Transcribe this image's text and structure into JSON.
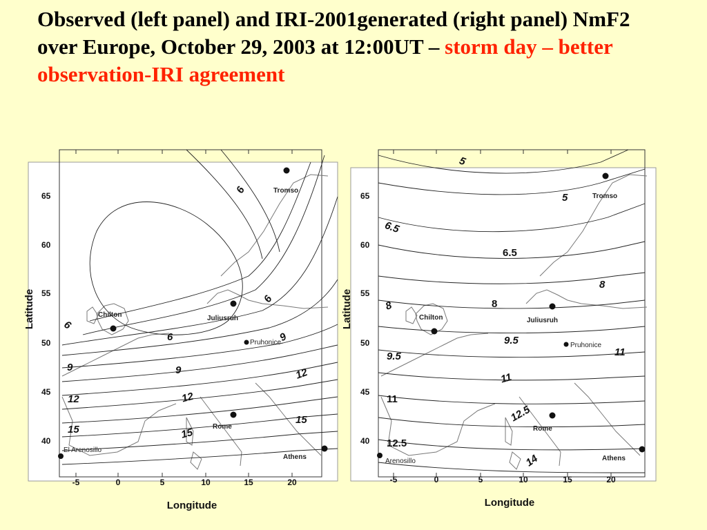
{
  "title": {
    "line_black": "Observed (left panel) and IRI-2001generated (right panel) NmF2 over Europe, October 29, 2003 at 12:00UT –",
    "line_red": "storm day – better observation-IRI agreement"
  },
  "colors": {
    "background": "#ffffcc",
    "highlight": "#ff2200",
    "panel": "#ffffff"
  },
  "left_panel": {
    "x_axis_label": "Longitude",
    "y_axis_label": "Latitude",
    "x_ticks": [
      "-5",
      "0",
      "5",
      "10",
      "15",
      "20"
    ],
    "y_ticks": [
      "65",
      "60",
      "55",
      "50",
      "45",
      "40"
    ],
    "stations": [
      "Tromso",
      "Juliusruh",
      "Chilton",
      "Pruhonice",
      "Rome",
      "Athens",
      "El Arenosillo"
    ],
    "contour_labels": [
      "6",
      "6",
      "6",
      "6",
      "9",
      "9",
      "9",
      "12",
      "12",
      "12",
      "15",
      "15",
      "15"
    ]
  },
  "right_panel": {
    "x_axis_label": "Longitude",
    "y_axis_label": "Latitude",
    "x_ticks": [
      "-5",
      "0",
      "5",
      "10",
      "15",
      "20"
    ],
    "y_ticks": [
      "65",
      "60",
      "55",
      "50",
      "45",
      "40"
    ],
    "stations": [
      "Tromso",
      "Juliusruh",
      "Chilton",
      "Pruhonice",
      "Rome",
      "Athens",
      "Arenosillo"
    ],
    "contour_labels": [
      "5",
      "5",
      "6.5",
      "6.5",
      "8",
      "8",
      "8",
      "9.5",
      "9.5",
      "11",
      "11",
      "11",
      "12.5",
      "12.5",
      "14"
    ]
  }
}
